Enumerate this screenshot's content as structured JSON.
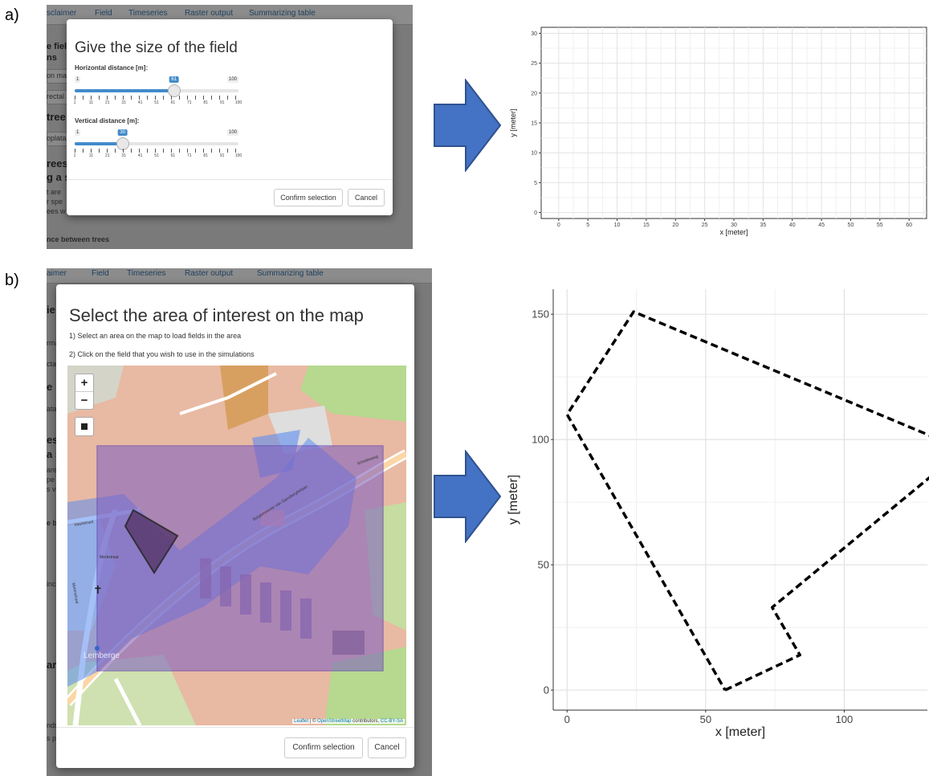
{
  "labels": {
    "a": "a)",
    "b": "b)"
  },
  "panel_a": {
    "tabs": [
      "sclaimer",
      "Field",
      "Timeseries",
      "Raster output",
      "Summarizing table"
    ],
    "background_sidebar": [
      "e fiel",
      "ns",
      "on ma",
      "rectal",
      "tree",
      "oplata",
      "rees",
      "g a s",
      "t are",
      "r spe",
      "ees w",
      "nce between trees"
    ],
    "modal": {
      "title": "Give the size of the field",
      "slider_h": {
        "label": "Horizontal distance [m]:",
        "min": "1",
        "max": "100",
        "value": "61",
        "value_num": 61,
        "ticks": [
          "1",
          "11",
          "21",
          "31",
          "41",
          "51",
          "61",
          "71",
          "81",
          "91",
          "100"
        ]
      },
      "slider_v": {
        "label": "Vertical distance [m]:",
        "min": "1",
        "max": "100",
        "value": "30",
        "value_num": 30,
        "ticks": [
          "1",
          "11",
          "21",
          "31",
          "41",
          "51",
          "61",
          "71",
          "81",
          "91",
          "100"
        ]
      },
      "confirm": "Confirm selection",
      "cancel": "Cancel"
    }
  },
  "panel_b": {
    "background_sidebar": [
      "ie",
      "rma",
      "cta",
      "e",
      "ata",
      "es",
      "a s",
      "are",
      "pe",
      "s v",
      "e b",
      "inc",
      "ar",
      "nds",
      "s p"
    ],
    "background_tabs": [
      "aimer",
      "Field",
      "Timeseries",
      "Raster output",
      "Summarizing table"
    ],
    "modal": {
      "title": "Select the area of interest on the map",
      "instruction_1": "1) Select an area on the map to load fields in the area",
      "instruction_2": "2) Click on the field that you wish to use in the simulations",
      "zoom_in": "+",
      "zoom_out": "−",
      "map_place_label": "Lemberge",
      "street_labels": [
        "Burgemeester van Gansberghelaan",
        "Scheibeweg",
        "Vaartstraat",
        "Merkstraat",
        "Molenstraat"
      ],
      "attribution_leaflet": "Leaflet",
      "attribution_sep": " | © ",
      "attribution_osm": "OpenStreetMap",
      "attribution_contrib": " contributors, ",
      "attribution_license": "CC-BY-SA",
      "confirm": "Confirm selection",
      "cancel": "Cancel"
    }
  },
  "colors": {
    "arrow": "#4472c4",
    "arrow_border": "#2f528f",
    "selection": "#8060c0",
    "bootstrap_blue": "#428bca"
  },
  "chart_data": [
    {
      "type": "line",
      "title": "",
      "xlabel": "x [meter]",
      "ylabel": "y [meter]",
      "xlim": [
        -3,
        63
      ],
      "ylim": [
        -1,
        31
      ],
      "xticks": [
        0,
        5,
        10,
        15,
        20,
        25,
        30,
        35,
        40,
        45,
        50,
        55,
        60
      ],
      "yticks": [
        0,
        5,
        10,
        15,
        20,
        25,
        30
      ],
      "grid": true,
      "series": []
    },
    {
      "type": "line",
      "title": "",
      "xlabel": "x [meter]",
      "ylabel": "y [meter]",
      "xlim": [
        -5,
        130
      ],
      "ylim": [
        -8,
        160
      ],
      "xticks": [
        0,
        50,
        100
      ],
      "yticks": [
        0,
        50,
        100,
        150
      ],
      "grid": true,
      "line_style": "dashed",
      "series": [
        {
          "x": [
            57,
            84,
            74,
            143,
            24,
            0,
            57
          ],
          "y": [
            0,
            14,
            33,
            96,
            151,
            110,
            0
          ]
        }
      ]
    }
  ]
}
